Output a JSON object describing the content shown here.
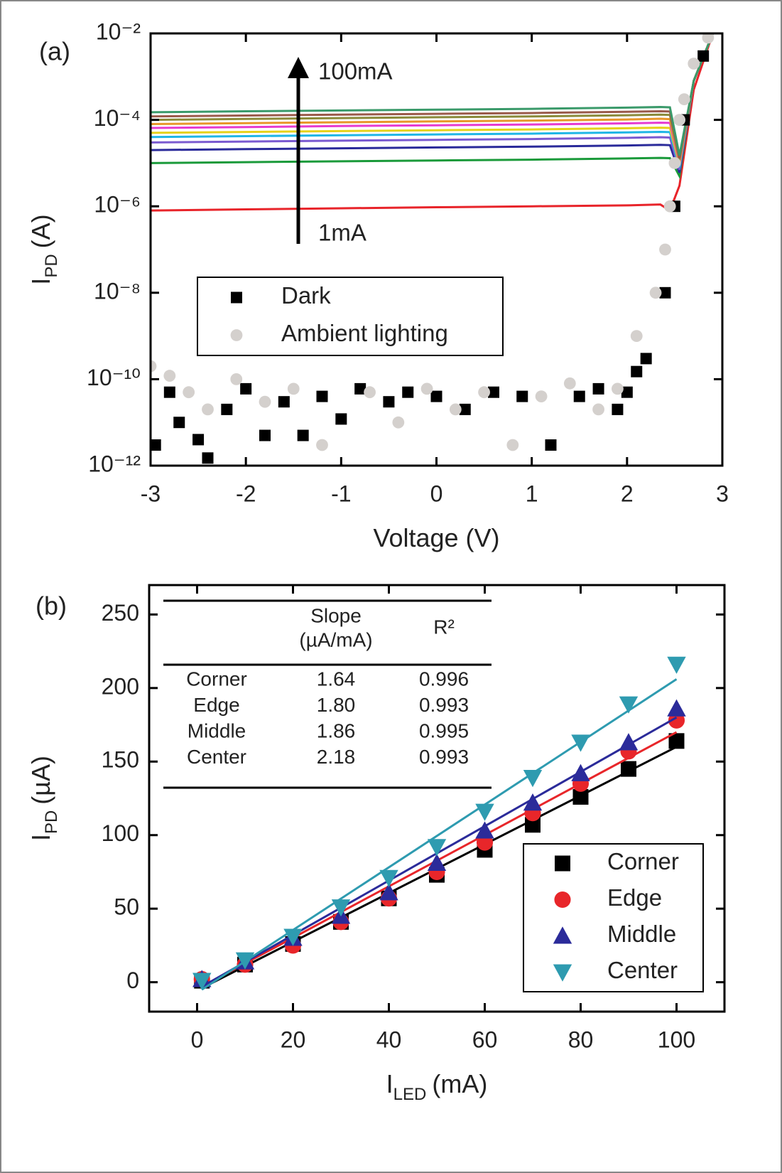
{
  "chart_data": [
    {
      "type": "line",
      "panel_label": "(a)",
      "x_label": "Voltage (V)",
      "y_label": "I",
      "y_label_subscript": "PD",
      "y_label_rest": "(A)",
      "log_y": true,
      "xlim": [
        -3,
        3
      ],
      "xticks": [
        -3,
        -2,
        -1,
        0,
        1,
        2,
        3
      ],
      "ylim": [
        1e-12,
        0.01
      ],
      "yticks": [
        {
          "value": 1e-12,
          "label": "10⁻¹²"
        },
        {
          "value": 1e-10,
          "label": "10⁻¹⁰"
        },
        {
          "value": 1e-08,
          "label": "10⁻⁸"
        },
        {
          "value": 1e-06,
          "label": "10⁻⁶"
        },
        {
          "value": 0.0001,
          "label": "10⁻⁴"
        },
        {
          "value": 0.01,
          "label": "10⁻²"
        }
      ],
      "annotations": [
        "100mA",
        "1mA"
      ],
      "legend": "center-left",
      "x": [
        -3,
        -2,
        -1,
        0,
        1,
        2,
        2.35,
        2.45,
        2.55,
        2.7,
        2.9
      ],
      "series": [
        {
          "color": "#e8242a",
          "values": [
            8e-07,
            8.5e-07,
            9e-07,
            9.5e-07,
            1e-06,
            1.05e-06,
            1.1e-06,
            8e-07,
            3e-06,
            0.0005,
            0.01
          ]
        },
        {
          "color": "#1a9a3a",
          "values": [
            1e-05,
            1.05e-05,
            1.1e-05,
            1.15e-05,
            1.2e-05,
            1.28e-05,
            1.32e-05,
            1.3e-05,
            5e-06,
            0.0008,
            0.01
          ]
        },
        {
          "color": "#2a2a9a",
          "values": [
            2e-05,
            2.1e-05,
            2.2e-05,
            2.3e-05,
            2.4e-05,
            2.56e-05,
            2.64e-05,
            2.6e-05,
            6e-06,
            0.0008,
            0.01
          ]
        },
        {
          "color": "#7a5ad0",
          "values": [
            3e-05,
            3.15e-05,
            3.3e-05,
            3.45e-05,
            3.6e-05,
            3.84e-05,
            3.96e-05,
            3.9e-05,
            7e-06,
            0.0008,
            0.01
          ]
        },
        {
          "color": "#1fb6e6",
          "values": [
            4e-05,
            4.2e-05,
            4.4e-05,
            4.6e-05,
            4.8e-05,
            5.12e-05,
            5.28e-05,
            5.2e-05,
            8e-06,
            0.0008,
            0.01
          ]
        },
        {
          "color": "#e6d21a",
          "values": [
            5e-05,
            5.25e-05,
            5.5e-05,
            5.75e-05,
            6e-05,
            6.4e-05,
            6.6e-05,
            6.5e-05,
            9e-06,
            0.0008,
            0.01
          ]
        },
        {
          "color": "#e63ad0",
          "values": [
            6.5e-05,
            6.8e-05,
            7.2e-05,
            7.5e-05,
            7.8e-05,
            8.3e-05,
            8.6e-05,
            8.5e-05,
            1e-05,
            0.0008,
            0.01
          ]
        },
        {
          "color": "#e8962a",
          "values": [
            8e-05,
            8.4e-05,
            8.8e-05,
            9.2e-05,
            9.6e-05,
            0.000102,
            0.000106,
            0.000104,
            1.1e-05,
            0.0008,
            0.01
          ]
        },
        {
          "color": "#8a8a3a",
          "values": [
            0.0001,
            0.000105,
            0.00011,
            0.000115,
            0.00012,
            0.000128,
            0.000132,
            0.00013,
            1.2e-05,
            0.0008,
            0.01
          ]
        },
        {
          "color": "#9a5a4a",
          "values": [
            0.00012,
            0.000126,
            0.000132,
            0.000138,
            0.000144,
            0.000154,
            0.000158,
            0.000156,
            1.3e-05,
            0.0008,
            0.01
          ]
        },
        {
          "color": "#3a9a6a",
          "values": [
            0.00015,
            0.000158,
            0.000165,
            0.000172,
            0.00018,
            0.000192,
            0.000198,
            0.000195,
            1.5e-05,
            0.0008,
            0.01
          ]
        },
        {
          "name": "Dark",
          "color": "#000000",
          "marker": "square",
          "x": [
            -2.95,
            -2.8,
            -2.7,
            -2.5,
            -2.4,
            -2.2,
            -2,
            -1.8,
            -1.6,
            -1.4,
            -1.2,
            -1,
            -0.8,
            -0.5,
            -0.3,
            0,
            0.3,
            0.6,
            0.9,
            1.2,
            1.5,
            1.7,
            1.9,
            2,
            2.1,
            2.2,
            2.4,
            2.5,
            2.6,
            2.8
          ],
          "values": [
            3e-12,
            5e-11,
            1e-11,
            4e-12,
            1.5e-12,
            2e-11,
            6e-11,
            5e-12,
            3e-11,
            5e-12,
            4e-11,
            1.2e-11,
            6e-11,
            3e-11,
            5e-11,
            4e-11,
            2e-11,
            5e-11,
            4e-11,
            3e-12,
            4e-11,
            6e-11,
            2e-11,
            5e-11,
            1.5e-10,
            3e-10,
            1e-08,
            1e-06,
            0.0001,
            0.003
          ]
        },
        {
          "name": "Ambient lighting",
          "color": "#d4d0cd",
          "marker": "circle",
          "x": [
            -3,
            -2.8,
            -2.6,
            -2.4,
            -2.1,
            -1.8,
            -1.5,
            -1.2,
            -1,
            -0.7,
            -0.4,
            -0.1,
            0.2,
            0.5,
            0.8,
            1.1,
            1.4,
            1.7,
            1.9,
            2.1,
            2.3,
            2.4,
            2.45,
            2.5,
            2.55,
            2.6,
            2.7,
            2.85
          ],
          "values": [
            2e-10,
            1.2e-10,
            5e-11,
            2e-11,
            1e-10,
            3e-11,
            6e-11,
            3e-12,
            8e-13,
            5e-11,
            1e-11,
            6e-11,
            2e-11,
            5e-11,
            3e-12,
            4e-11,
            8e-11,
            2e-11,
            6e-11,
            1e-09,
            1e-08,
            1e-07,
            1e-06,
            1e-05,
            0.0001,
            0.0003,
            0.002,
            0.008
          ]
        }
      ]
    },
    {
      "type": "scatter",
      "panel_label": "(b)",
      "x_label": "I",
      "x_label_subscript": "LED",
      "x_label_rest": "(mA)",
      "y_label": "I",
      "y_label_subscript": "PD",
      "y_label_rest": "(µA)",
      "xlim": [
        -10,
        110
      ],
      "xticks": [
        0,
        20,
        40,
        60,
        80,
        100
      ],
      "ylim": [
        -20,
        270
      ],
      "yticks": [
        0,
        50,
        100,
        150,
        200,
        250
      ],
      "legend": "lower-right",
      "x": [
        1,
        10,
        20,
        30,
        40,
        50,
        60,
        70,
        80,
        90,
        100
      ],
      "series": [
        {
          "name": "Corner",
          "color": "#000000",
          "marker": "square",
          "values": [
            1,
            12,
            26,
            41,
            57,
            73,
            90,
            107,
            126,
            145,
            164
          ],
          "fit_x": [
            1,
            100
          ],
          "fit_values": [
            -4,
            160
          ]
        },
        {
          "name": "Edge",
          "color": "#e8262a",
          "marker": "circle",
          "values": [
            2,
            12,
            25,
            41,
            57,
            75,
            95,
            115,
            135,
            157,
            178
          ],
          "fit_x": [
            1,
            100
          ],
          "fit_values": [
            -3,
            170
          ]
        },
        {
          "name": "Middle",
          "color": "#2b2b9a",
          "marker": "up",
          "values": [
            2,
            14,
            30,
            45,
            61,
            81,
            103,
            122,
            142,
            163,
            186
          ],
          "fit_x": [
            1,
            100
          ],
          "fit_values": [
            -3,
            180
          ]
        },
        {
          "name": "Center",
          "color": "#2e9bb0",
          "marker": "down",
          "values": [
            1,
            15,
            31,
            51,
            71,
            92,
            116,
            139,
            163,
            189,
            216
          ],
          "fit_x": [
            1,
            100
          ],
          "fit_values": [
            -5,
            206
          ]
        }
      ],
      "table_header": [
        "Slope",
        "(µA/mA)",
        "R²"
      ],
      "table_rows": [
        [
          "Corner",
          "1.64",
          "0.996"
        ],
        [
          "Edge",
          "1.80",
          "0.993"
        ],
        [
          "Middle",
          "1.86",
          "0.995"
        ],
        [
          "Center",
          "2.18",
          "0.993"
        ]
      ]
    }
  ]
}
